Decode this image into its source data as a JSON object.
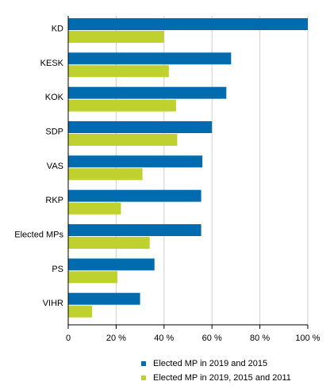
{
  "chart_data": {
    "type": "bar",
    "orientation": "horizontal",
    "categories": [
      "KD",
      "KESK",
      "KOK",
      "SDP",
      "VAS",
      "RKP",
      "Elected MPs",
      "PS",
      "VIHR"
    ],
    "series": [
      {
        "name": "Elected MP in 2019 and 2015",
        "color": "#006CAF",
        "values": [
          100,
          68,
          66,
          60,
          56,
          55.5,
          55.5,
          36,
          30
        ]
      },
      {
        "name": "Elected MP in 2019, 2015 and 2011",
        "color": "#BED12E",
        "values": [
          40,
          42,
          45,
          45.5,
          31,
          22,
          34,
          20.5,
          10
        ]
      }
    ],
    "xlim": [
      0,
      100
    ],
    "xticks": [
      "0",
      "20 %",
      "40 %",
      "60 %",
      "80 %",
      "100 %"
    ],
    "grid": true,
    "legend_position": "bottom"
  }
}
